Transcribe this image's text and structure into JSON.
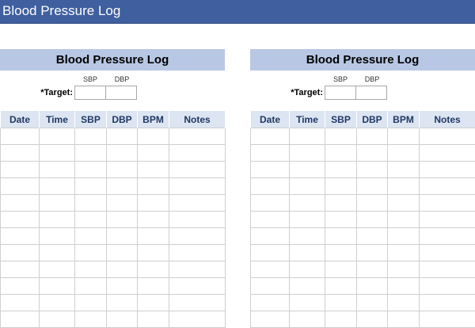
{
  "banner": {
    "title": "Blood Pressure Log"
  },
  "panels": [
    {
      "title": "Blood Pressure Log",
      "target": {
        "label": "*Target:",
        "sbp_label": "SBP",
        "dbp_label": "DBP",
        "sbp_value": "",
        "dbp_value": ""
      },
      "columns": [
        "Date",
        "Time",
        "SBP",
        "DBP",
        "BPM",
        "Notes"
      ],
      "row_count": 12
    },
    {
      "title": "Blood Pressure Log",
      "target": {
        "label": "*Target:",
        "sbp_label": "SBP",
        "dbp_label": "DBP",
        "sbp_value": "",
        "dbp_value": ""
      },
      "columns": [
        "Date",
        "Time",
        "SBP",
        "DBP",
        "BPM",
        "Notes"
      ],
      "row_count": 12
    }
  ],
  "colors": {
    "banner_bg": "#3f5f9f",
    "panel_header_bg": "#b8c7e4",
    "column_header_bg": "#dde5f2",
    "column_header_text": "#1f3864",
    "grid_line": "#cfcfcf"
  }
}
